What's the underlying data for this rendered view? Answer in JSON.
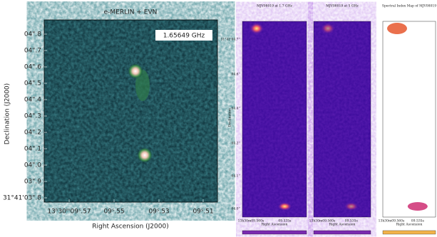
{
  "left_panel": {
    "title": "e-MERLIN + EVN",
    "frequency_label": "1.65649 GHz",
    "x_label": "Right Ascension (J2000)",
    "y_label": "Declination (J2000)",
    "yticks": [
      "04\".8",
      "04\".7",
      "04\".6",
      "04\".5",
      "04\".4",
      "04\".3",
      "04\".2",
      "04\".1",
      "04\".0",
      "03\".9",
      "31°41'03\".8"
    ],
    "xticks": [
      "13ʰ30ᵐ09ˢ.57",
      "09ˢ.55",
      "09ˢ.53",
      "09ˢ.51"
    ]
  },
  "right_panels": {
    "y_label": "Declination",
    "yticks": [
      "31°41'04.7''",
      "04.6''",
      "04.4''",
      "04.2''",
      "04.1''",
      "04.0''"
    ],
    "panels": [
      {
        "title": "MJV08019 at 1.7 GHz",
        "x_label": "Right Ascension",
        "xticks": [
          "13h30m09.560s",
          "09.535s"
        ]
      },
      {
        "title": "MJV08019 at 5 GHz",
        "x_label": "Right Ascension",
        "xticks": [
          "13h30m09.560s",
          "09.535s"
        ]
      },
      {
        "title": "Spectral Index Map of MJV08019",
        "x_label": "Right Ascension",
        "xticks": [
          "13h30m09.560s",
          "09.535s"
        ]
      }
    ]
  }
}
